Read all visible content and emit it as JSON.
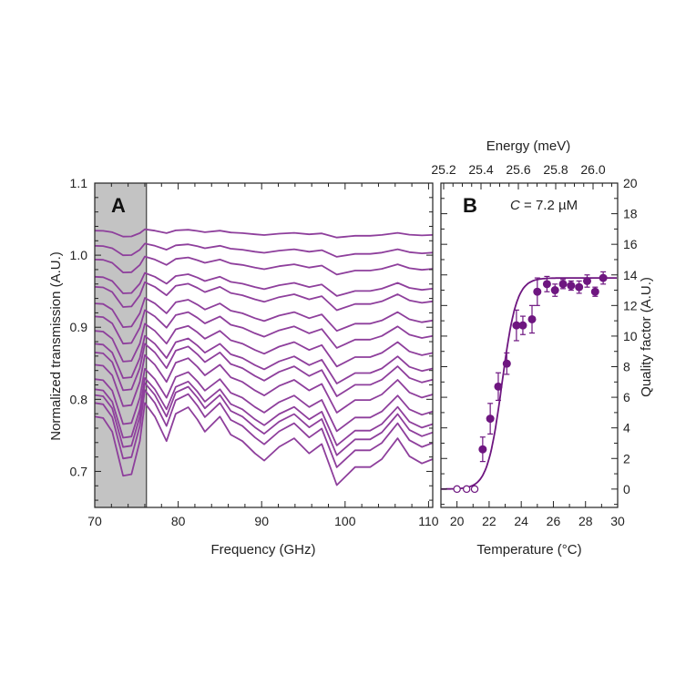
{
  "chart_data": [
    {
      "type": "line",
      "panel_label": "A",
      "xlabel": "Frequency (GHz)",
      "ylabel": "Normalized transmission (A.U.)",
      "xlim": [
        70,
        110.5
      ],
      "ylim": [
        0.65,
        1.1
      ],
      "xticks": [
        70,
        80,
        90,
        100,
        110
      ],
      "yticks": [
        0.7,
        0.8,
        0.9,
        1.0,
        1.1
      ],
      "ytick_labels": [
        "0.7",
        "0.8",
        "0.9",
        "1.0",
        "1.1"
      ],
      "shaded_region": {
        "x": [
          70,
          76.2
        ],
        "color": "#c3c3c3"
      },
      "line_color": "#8e3f9c",
      "profile_x": [
        70,
        71,
        72.1,
        73.4,
        74.4,
        75.4,
        76,
        77.2,
        78.6,
        79.7,
        81.2,
        82.3,
        83.2,
        85,
        86.3,
        87.7,
        89.2,
        90.3,
        92.1,
        93.9,
        95.7,
        97.2,
        99,
        101.2,
        103,
        104.4,
        106.3,
        107.7,
        109.2,
        110.5
      ],
      "profile_dy": [
        0,
        -0.002,
        -0.021,
        -0.082,
        -0.08,
        -0.034,
        0.019,
        0,
        -0.034,
        0.004,
        0.013,
        -0.004,
        -0.021,
        0,
        -0.025,
        -0.034,
        -0.051,
        -0.061,
        -0.042,
        -0.03,
        -0.051,
        -0.038,
        -0.095,
        -0.07,
        -0.07,
        -0.059,
        -0.03,
        -0.055,
        -0.065,
        -0.059
      ],
      "series_offsets": [
        1.034,
        1.013,
        0.994,
        0.97,
        0.956,
        0.933,
        0.915,
        0.895,
        0.877,
        0.865,
        0.848,
        0.828,
        0.814,
        0.806,
        0.795,
        0.776
      ],
      "series_amplitudes": [
        0.1,
        0.16,
        0.22,
        0.28,
        0.34,
        0.4,
        0.46,
        0.52,
        0.58,
        0.64,
        0.7,
        0.76,
        0.82,
        0.88,
        0.94,
        1.0
      ]
    },
    {
      "type": "scatter",
      "panel_label": "B",
      "annotation": {
        "var": "C",
        "text": " = 7.2 µM"
      },
      "xlabel": "Temperature (°C)",
      "ylabel": "Quality factor (A.U.)",
      "top_xlabel": "Energy (meV)",
      "xlim": [
        19,
        30
      ],
      "ylim": [
        -1.2,
        20
      ],
      "xticks": [
        20,
        22,
        24,
        26,
        28,
        30
      ],
      "yticks": [
        0,
        2,
        4,
        6,
        8,
        10,
        12,
        14,
        16,
        18,
        20
      ],
      "top_xticks": [
        "25.2",
        "25.4",
        "25.6",
        "25.8",
        "26.0"
      ],
      "marker_color": "#6e1680",
      "open_points": {
        "x": [
          20.0,
          20.6,
          21.1
        ],
        "y": [
          0,
          0,
          0
        ]
      },
      "points": {
        "x": [
          21.6,
          22.07,
          22.57,
          23.1,
          23.7,
          24.1,
          24.67,
          25.0,
          25.6,
          26.1,
          26.6,
          27.1,
          27.6,
          28.1,
          28.6,
          29.1
        ],
        "y": [
          2.6,
          4.6,
          6.7,
          8.2,
          10.7,
          10.7,
          11.1,
          12.9,
          13.4,
          13.0,
          13.4,
          13.3,
          13.2,
          13.6,
          12.9,
          13.8
        ],
        "err": [
          0.8,
          1.0,
          0.9,
          0.7,
          1.0,
          0.6,
          0.9,
          0.9,
          0.5,
          0.4,
          0.3,
          0.3,
          0.4,
          0.4,
          0.3,
          0.4
        ]
      },
      "fit": {
        "type": "sigmoid",
        "plateau": 13.8,
        "midpoint": 22.8,
        "width": 0.45
      }
    }
  ]
}
